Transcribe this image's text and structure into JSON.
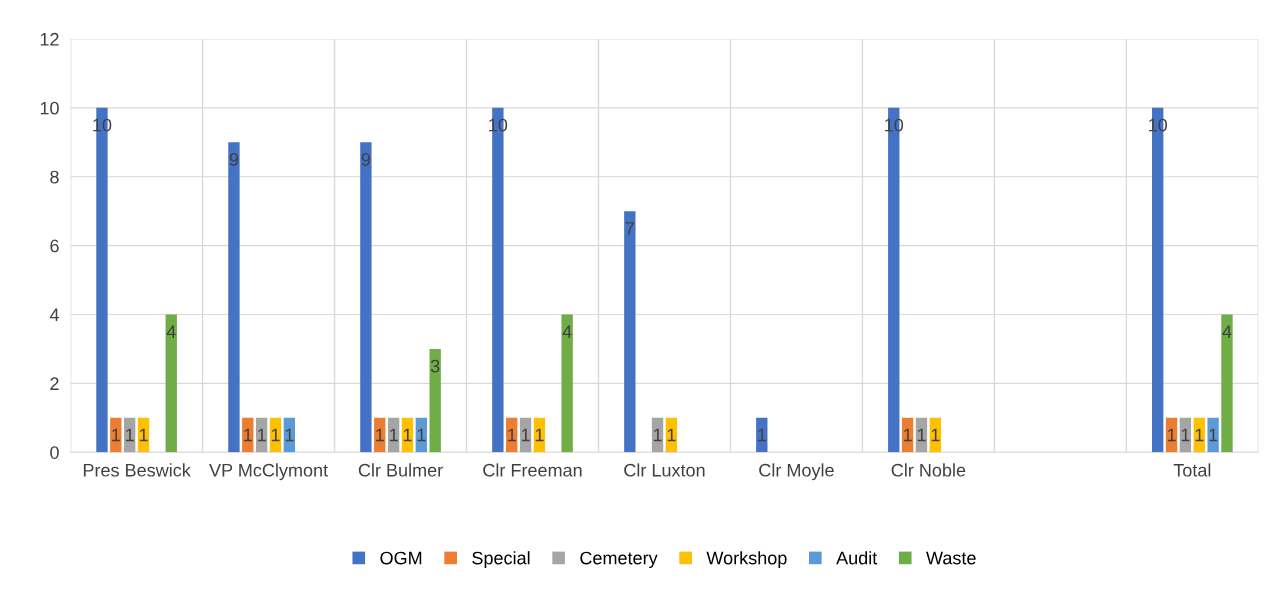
{
  "chart_data": {
    "type": "bar",
    "categories": [
      "Pres Beswick",
      "VP McClymont",
      "Clr Bulmer",
      "Clr Freeman",
      "Clr Luxton",
      "Clr Moyle",
      "Clr Noble",
      null,
      "Total"
    ],
    "series": [
      {
        "name": "OGM",
        "color": "#4472c4",
        "values": [
          10,
          9,
          9,
          10,
          7,
          1,
          10,
          null,
          10
        ]
      },
      {
        "name": "Special",
        "color": "#ed7d31",
        "values": [
          1,
          1,
          1,
          1,
          null,
          null,
          1,
          null,
          1
        ]
      },
      {
        "name": "Cemetery",
        "color": "#a5a5a5",
        "values": [
          1,
          1,
          1,
          1,
          1,
          null,
          1,
          null,
          1
        ]
      },
      {
        "name": "Workshop",
        "color": "#ffc000",
        "values": [
          1,
          1,
          1,
          1,
          1,
          null,
          1,
          null,
          1
        ]
      },
      {
        "name": "Audit",
        "color": "#5b9bd5",
        "values": [
          null,
          1,
          1,
          null,
          null,
          null,
          null,
          null,
          1
        ]
      },
      {
        "name": "Waste",
        "color": "#70ad47",
        "values": [
          4,
          null,
          3,
          4,
          null,
          null,
          null,
          null,
          4
        ]
      }
    ],
    "ylim": [
      0,
      12
    ],
    "yticks": [
      0,
      2,
      4,
      6,
      8,
      10,
      12
    ],
    "grid": true,
    "legend": "bottom",
    "data_labels": true
  }
}
